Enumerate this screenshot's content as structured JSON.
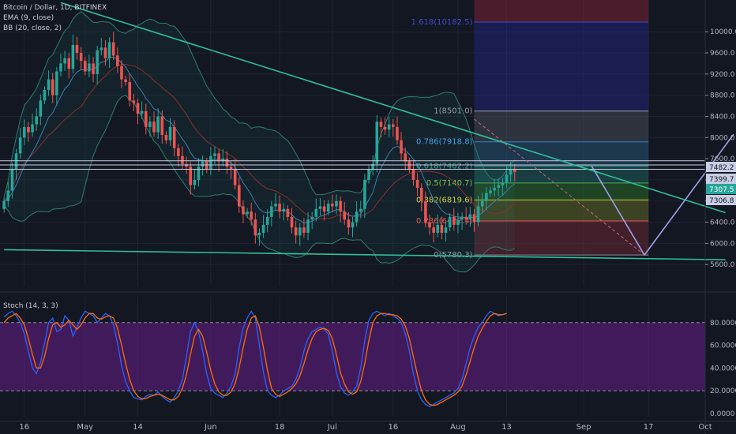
{
  "legend": {
    "symbol": "Bitcoin / Dollar, 1D, BITFINEX",
    "ema": "EMA (9, close)",
    "bb": "BB (20, close, 2)",
    "stoch": "Stoch (14, 3, 3)"
  },
  "colors": {
    "background": "#131722",
    "up": "#26a69a",
    "down": "#ef5350",
    "trendline": "#2fbf9a",
    "projection": "#9f9fe6",
    "stoch_k": "#2962ff",
    "stoch_d": "#ff6d00",
    "stoch_band": "#7b1fa2"
  },
  "chart_data": [
    {
      "type": "candlestick",
      "yaxis": {
        "min": 5200,
        "max": 10600,
        "ticks": [
          5600,
          6000,
          6400,
          6800,
          7200,
          7600,
          8000,
          8400,
          8800,
          9200,
          9600,
          10000
        ],
        "tick_labels": [
          "5600.0",
          "6000.0",
          "6400.0",
          "6800.0",
          "7200.0",
          "7600.0",
          "8000.0",
          "8400.0",
          "8800.0",
          "9200.0",
          "9600.0",
          "10000.0"
        ]
      },
      "xaxis": {
        "labels": [
          "16",
          "May",
          "14",
          "Jun",
          "18",
          "Jul",
          "16",
          "Aug",
          "13",
          "Sep",
          "17",
          "Oct"
        ],
        "label_days": [
          -15,
          0,
          13,
          31,
          48,
          61,
          76,
          92,
          104,
          123,
          139,
          153
        ]
      },
      "candles": {
        "start_day": -20,
        "closes": [
          6800,
          7000,
          7400,
          7700,
          8000,
          8200,
          8100,
          8250,
          8400,
          8700,
          8900,
          9100,
          8800,
          9250,
          9400,
          9500,
          9300,
          9750,
          9600,
          9450,
          9250,
          9400,
          9200,
          9650,
          9700,
          9500,
          9800,
          9550,
          9350,
          9100,
          9050,
          8700,
          8650,
          8450,
          8500,
          8200,
          8300,
          8100,
          8400,
          8050,
          7950,
          8200,
          7800,
          7650,
          7500,
          7450,
          7100,
          7200,
          7450,
          7550,
          7400,
          7650,
          7700,
          7550,
          7600,
          7450,
          7400,
          7100,
          6700,
          6550,
          6600,
          6450,
          6150,
          6200,
          6350,
          6500,
          6700,
          6750,
          6600,
          6650,
          6500,
          6300,
          6150,
          6300,
          6200,
          6450,
          6500,
          6650,
          6700,
          6600,
          6750,
          6700,
          6800,
          6600,
          6450,
          6300,
          6400,
          6600,
          6650,
          7200,
          7400,
          7500,
          8300,
          8200,
          8150,
          8250,
          8200,
          7950,
          7700,
          7550,
          7400,
          7200,
          7050,
          6800,
          6400,
          6300,
          6200,
          6350,
          6200,
          6300,
          6500,
          6350,
          6450,
          6500,
          6450,
          6550,
          6400,
          6700,
          6800,
          6950,
          7000,
          7050,
          7100,
          7150,
          7300,
          7400,
          7350
        ],
        "open_1": 6650,
        "wick": 140
      },
      "fib_levels": [
        {
          "ratio": "1.618",
          "price": 10182.5,
          "label": "1.618(10182.5)"
        },
        {
          "ratio": "1",
          "price": 8501.0,
          "label": "1(8501.0)"
        },
        {
          "ratio": "0.786",
          "price": 7918.8,
          "label": "0.786(7918.8)"
        },
        {
          "ratio": "0.618",
          "price": 7462.2,
          "label": "0.618(7462.2)"
        },
        {
          "ratio": "0.5",
          "price": 7140.7,
          "label": "0.5(7140.7)"
        },
        {
          "ratio": "0.382",
          "price": 6819.6,
          "label": "0.382(6819.6)"
        },
        {
          "ratio": "0.236",
          "price": 6422.4,
          "label": "0.236(6422.4)"
        },
        {
          "ratio": "0",
          "price": 5780.3,
          "label": "0(5780.3)"
        }
      ],
      "price_tags": [
        {
          "value": 7482.2,
          "label": "7482.2",
          "color": "#c9cde3"
        },
        {
          "value": 7399.7,
          "label": "7399.7",
          "color": "#c9cde3"
        },
        {
          "value": 7307.5,
          "label": "7307.5",
          "color": "#26a69a"
        },
        {
          "value": 7306.8,
          "label": "7306.8",
          "color": "#c9cde3"
        }
      ],
      "horizontal_lines": [
        7560,
        7482.2,
        7399.7
      ],
      "trendlines": [
        {
          "from": [
            -6,
            10550
          ],
          "to": [
            158,
            6580
          ]
        },
        {
          "from": [
            -20,
            5880
          ],
          "to": [
            158,
            5690
          ]
        }
      ],
      "projection_path": [
        [
          125,
          7460
        ],
        [
          138,
          5780
        ],
        [
          160,
          8060
        ]
      ],
      "dashed_path": [
        [
          96,
          8350
        ],
        [
          138,
          5780
        ]
      ]
    },
    {
      "type": "line",
      "name": "Stoch",
      "yaxis": {
        "min": 0,
        "max": 100,
        "ticks": [
          0,
          20,
          40,
          60,
          80
        ],
        "tick_labels": [
          "0.0000",
          "20.0000",
          "40.0000",
          "60.0000",
          "80.0000"
        ],
        "bands": [
          20,
          80
        ]
      },
      "series": [
        {
          "key": "k",
          "values": [
            85,
            88,
            90,
            86,
            80,
            70,
            55,
            40,
            35,
            45,
            62,
            80,
            84,
            72,
            74,
            86,
            82,
            68,
            76,
            84,
            90,
            88,
            86,
            80,
            84,
            88,
            86,
            78,
            62,
            42,
            28,
            20,
            14,
            13,
            12,
            15,
            17,
            16,
            19,
            15,
            12,
            10,
            14,
            20,
            30,
            50,
            72,
            80,
            72,
            55,
            35,
            22,
            18,
            16,
            14,
            18,
            24,
            35,
            58,
            75,
            84,
            90,
            84,
            60,
            36,
            20,
            16,
            14,
            16,
            20,
            22,
            24,
            30,
            40,
            55,
            66,
            72,
            74,
            76,
            74,
            70,
            55,
            36,
            24,
            18,
            16,
            19,
            24,
            40,
            64,
            82,
            88,
            90,
            88,
            86,
            88,
            86,
            84,
            80,
            70,
            55,
            35,
            20,
            12,
            8,
            6,
            8,
            10,
            12,
            14,
            16,
            18,
            22,
            30,
            44,
            58,
            68,
            76,
            80,
            86,
            90,
            88,
            86,
            87,
            88
          ],
          "start_day": -20
        },
        {
          "key": "d",
          "values": [
            80,
            84,
            86,
            88,
            84,
            78,
            66,
            52,
            40,
            40,
            50,
            66,
            78,
            80,
            76,
            78,
            82,
            78,
            74,
            78,
            84,
            88,
            88,
            84,
            83,
            85,
            86,
            84,
            75,
            60,
            44,
            30,
            20,
            15,
            13,
            13,
            15,
            16,
            17,
            16,
            14,
            12,
            12,
            15,
            22,
            34,
            52,
            68,
            74,
            68,
            54,
            38,
            26,
            19,
            16,
            16,
            19,
            26,
            40,
            58,
            74,
            84,
            86,
            76,
            58,
            38,
            22,
            17,
            15,
            17,
            19,
            22,
            26,
            33,
            44,
            56,
            66,
            72,
            74,
            75,
            73,
            66,
            52,
            36,
            26,
            19,
            17,
            19,
            28,
            44,
            64,
            80,
            86,
            88,
            88,
            87,
            87,
            86,
            83,
            77,
            66,
            50,
            34,
            20,
            12,
            8,
            7,
            8,
            10,
            12,
            14,
            16,
            19,
            24,
            34,
            46,
            58,
            68,
            75,
            81,
            86,
            88,
            87,
            87,
            88
          ],
          "start_day": -20
        }
      ]
    }
  ]
}
